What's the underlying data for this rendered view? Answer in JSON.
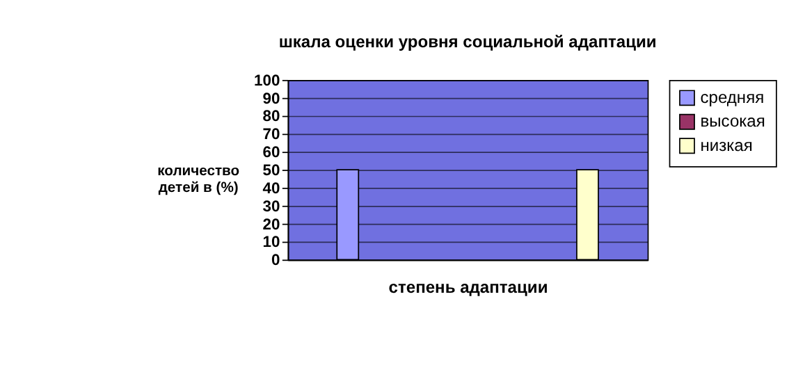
{
  "chart_data": {
    "type": "bar",
    "title": "шкала оценки уровня социальной адаптации",
    "xlabel": "степень адаптации",
    "ylabel": "количество детей в (%)",
    "categories": [
      null,
      null,
      null
    ],
    "series": [
      {
        "name": "средняя",
        "color": "#9999ff",
        "values": [
          50,
          null,
          null
        ]
      },
      {
        "name": "высокая",
        "color": "#993366",
        "values": [
          null,
          null,
          null
        ]
      },
      {
        "name": "низкая",
        "color": "#ffffcc",
        "values": [
          null,
          null,
          50
        ]
      }
    ],
    "ylim": [
      0,
      100
    ],
    "yticks": [
      0,
      10,
      20,
      30,
      40,
      50,
      60,
      70,
      80,
      90,
      100
    ],
    "grid": "y",
    "legend": "right"
  }
}
